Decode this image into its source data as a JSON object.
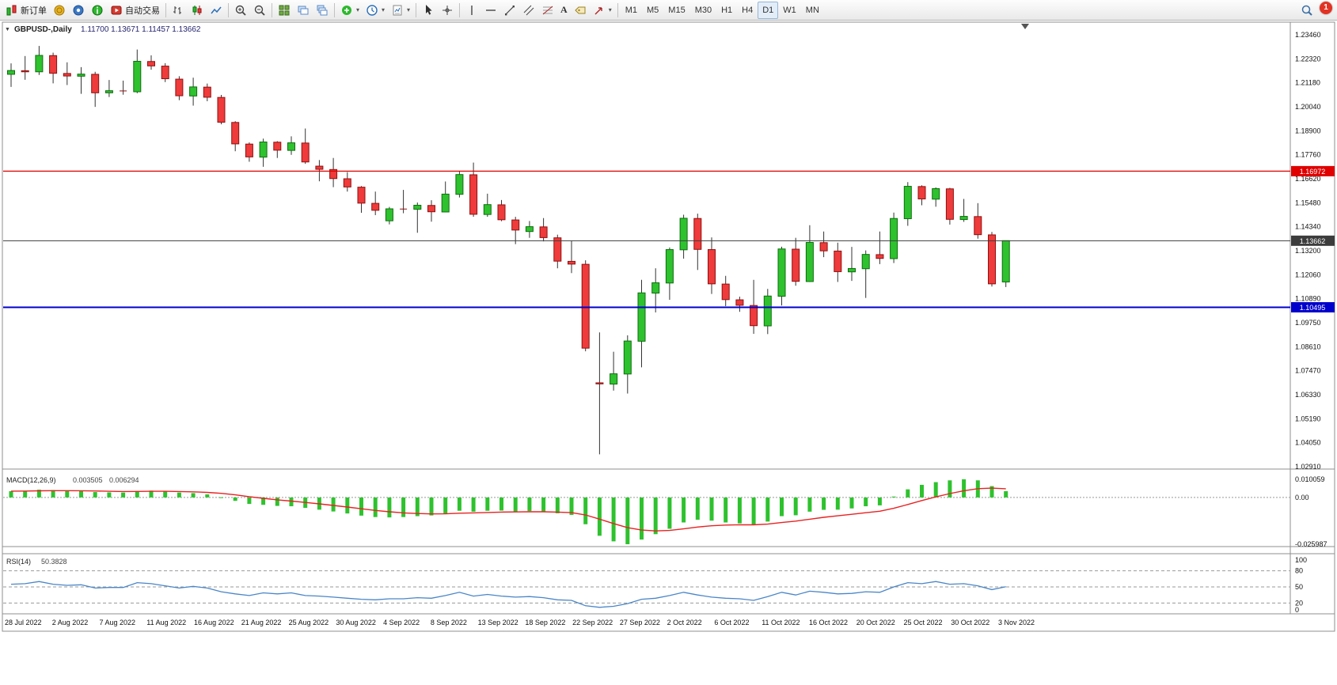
{
  "toolbar": {
    "new_order_label": "新订单",
    "autotrading_label": "自动交易",
    "timeframes": [
      "M1",
      "M5",
      "M15",
      "M30",
      "H1",
      "H4",
      "D1",
      "W1",
      "MN"
    ],
    "active_timeframe": "D1",
    "notification_count": "1",
    "caret_glyph": "▾",
    "icons": {
      "text_tool_glyph": "A",
      "names": [
        "new-order-icon",
        "market-watch-icon",
        "messages-icon",
        "info-icon",
        "autotrading-icon",
        "bar-chart-icon",
        "candlestick-chart-icon",
        "line-chart-icon",
        "zoom-in-icon",
        "zoom-out-icon",
        "tile-windows-icon",
        "arrange-windows-icon",
        "cascade-windows-icon",
        "indicators-icon",
        "periods-icon",
        "templates-icon",
        "cursor-icon",
        "crosshair-icon",
        "vertical-line-icon",
        "horizontal-line-icon",
        "trendline-icon",
        "channel-icon",
        "fibonacci-icon",
        "text-icon",
        "text-label-icon",
        "arrows-icon",
        "search-icon"
      ]
    }
  },
  "colors": {
    "candle_up": "#2ec22e",
    "candle_up_border": "#0e6e0e",
    "candle_down": "#ef3b3b",
    "candle_down_border": "#8f1010",
    "macd_histogram": "#2ec22e",
    "macd_signal": "#e82222",
    "rsi_line": "#4a86c8",
    "hline_resistance": "#e00000",
    "hline_current": "#3c3c3c",
    "hline_support": "#0000cc",
    "panel_border": "#8f8f8f"
  },
  "chart_data": [
    {
      "type": "candlestick",
      "title": "GBPUSD-,Daily",
      "timeframe": "D1",
      "quote": {
        "open": "1.11700",
        "high": "1.13671",
        "low": "1.11457",
        "close": "1.13662"
      },
      "collapse_marker": "▼",
      "ylim": [
        1.0291,
        1.2346
      ],
      "y_tick_labels": [
        "1.23460",
        "1.22320",
        "1.21180",
        "1.20040",
        "1.18900",
        "1.17760",
        "1.16620",
        "1.15480",
        "1.14340",
        "1.13200",
        "1.12060",
        "1.10890",
        "1.09750",
        "1.08610",
        "1.07470",
        "1.06330",
        "1.05190",
        "1.04050",
        "1.02910"
      ],
      "x_tick_labels": [
        "28 Jul 2022",
        "2 Aug 2022",
        "7 Aug 2022",
        "11 Aug 2022",
        "16 Aug 2022",
        "21 Aug 2022",
        "25 Aug 2022",
        "30 Aug 2022",
        "4 Sep 2022",
        "8 Sep 2022",
        "13 Sep 2022",
        "18 Sep 2022",
        "22 Sep 2022",
        "27 Sep 2022",
        "2 Oct 2022",
        "6 Oct 2022",
        "11 Oct 2022",
        "16 Oct 2022",
        "20 Oct 2022",
        "25 Oct 2022",
        "30 Oct 2022",
        "3 Nov 2022"
      ],
      "hlines": [
        {
          "price": 1.16972,
          "label": "1.16972",
          "color": "#e00000",
          "width": 1.2
        },
        {
          "price": 1.13662,
          "label": "1.13662",
          "color": "#3c3c3c",
          "width": 1
        },
        {
          "price": 1.10495,
          "label": "1.10495",
          "color": "#0000cc",
          "width": 2
        }
      ],
      "ohlc": [
        [
          1.2158,
          1.221,
          1.2098,
          1.2176
        ],
        [
          1.2175,
          1.2245,
          1.2132,
          1.217
        ],
        [
          1.217,
          1.2293,
          1.2155,
          1.2248
        ],
        [
          1.2247,
          1.2261,
          1.2115,
          1.2163
        ],
        [
          1.2162,
          1.2215,
          1.2107,
          1.215
        ],
        [
          1.2149,
          1.2192,
          1.2065,
          1.2159
        ],
        [
          1.2158,
          1.217,
          1.2003,
          1.207
        ],
        [
          1.207,
          1.2131,
          1.205,
          1.208
        ],
        [
          1.2079,
          1.2128,
          1.2061,
          1.2076
        ],
        [
          1.2075,
          1.2276,
          1.2068,
          1.222
        ],
        [
          1.2219,
          1.2248,
          1.218,
          1.2198
        ],
        [
          1.2197,
          1.2211,
          1.2121,
          1.2137
        ],
        [
          1.2135,
          1.2149,
          1.2035,
          1.2056
        ],
        [
          1.2055,
          1.2142,
          1.2009,
          1.2098
        ],
        [
          1.2097,
          1.2114,
          1.203,
          1.2049
        ],
        [
          1.2048,
          1.206,
          1.192,
          1.193
        ],
        [
          1.1929,
          1.1935,
          1.1792,
          1.1827
        ],
        [
          1.1826,
          1.1834,
          1.1742,
          1.1765
        ],
        [
          1.1764,
          1.1852,
          1.1718,
          1.1836
        ],
        [
          1.1835,
          1.184,
          1.176,
          1.1797
        ],
        [
          1.1796,
          1.1863,
          1.1775,
          1.1832
        ],
        [
          1.1831,
          1.19,
          1.1732,
          1.1741
        ],
        [
          1.1721,
          1.175,
          1.1649,
          1.1706
        ],
        [
          1.1705,
          1.176,
          1.1621,
          1.1662
        ],
        [
          1.1661,
          1.1693,
          1.16,
          1.1622
        ],
        [
          1.1621,
          1.1626,
          1.1499,
          1.1545
        ],
        [
          1.1544,
          1.16,
          1.1488,
          1.1511
        ],
        [
          1.1461,
          1.1527,
          1.1444,
          1.1518
        ],
        [
          1.1517,
          1.1608,
          1.1497,
          1.1516
        ],
        [
          1.1516,
          1.1548,
          1.1404,
          1.1535
        ],
        [
          1.1534,
          1.1559,
          1.1457,
          1.1504
        ],
        [
          1.1503,
          1.1648,
          1.1501,
          1.1588
        ],
        [
          1.1587,
          1.1699,
          1.1572,
          1.1681
        ],
        [
          1.168,
          1.1738,
          1.148,
          1.1492
        ],
        [
          1.1491,
          1.159,
          1.148,
          1.1538
        ],
        [
          1.1537,
          1.156,
          1.1459,
          1.1466
        ],
        [
          1.1465,
          1.148,
          1.135,
          1.1417
        ],
        [
          1.141,
          1.146,
          1.138,
          1.1433
        ],
        [
          1.1432,
          1.1474,
          1.1363,
          1.1381
        ],
        [
          1.138,
          1.1395,
          1.1235,
          1.1269
        ],
        [
          1.1268,
          1.1365,
          1.1212,
          1.1255
        ],
        [
          1.1254,
          1.1273,
          1.084,
          1.0855
        ],
        [
          1.069,
          1.093,
          1.035,
          1.0685
        ],
        [
          1.0684,
          1.0838,
          1.0653,
          1.0733
        ],
        [
          1.0732,
          1.0916,
          1.0639,
          1.0889
        ],
        [
          1.0888,
          1.118,
          1.0764,
          1.1118
        ],
        [
          1.1117,
          1.1235,
          1.1025,
          1.1166
        ],
        [
          1.1165,
          1.1334,
          1.1085,
          1.1324
        ],
        [
          1.1323,
          1.149,
          1.1281,
          1.1473
        ],
        [
          1.1472,
          1.1495,
          1.1227,
          1.1325
        ],
        [
          1.1324,
          1.1382,
          1.1113,
          1.1161
        ],
        [
          1.116,
          1.1199,
          1.1055,
          1.1086
        ],
        [
          1.1085,
          1.11,
          1.1028,
          1.1059
        ],
        [
          1.1058,
          1.118,
          1.0923,
          1.0962
        ],
        [
          1.0961,
          1.1137,
          1.0922,
          1.1103
        ],
        [
          1.1102,
          1.1338,
          1.1058,
          1.1327
        ],
        [
          1.1326,
          1.138,
          1.1152,
          1.1173
        ],
        [
          1.1172,
          1.144,
          1.117,
          1.1358
        ],
        [
          1.1357,
          1.141,
          1.1288,
          1.1318
        ],
        [
          1.1317,
          1.1357,
          1.117,
          1.1219
        ],
        [
          1.1218,
          1.1337,
          1.1175,
          1.1234
        ],
        [
          1.1233,
          1.132,
          1.1094,
          1.1301
        ],
        [
          1.13,
          1.141,
          1.1255,
          1.1282
        ],
        [
          1.1281,
          1.15,
          1.126,
          1.1472
        ],
        [
          1.1471,
          1.1645,
          1.1437,
          1.1625
        ],
        [
          1.1624,
          1.163,
          1.1535,
          1.1565
        ],
        [
          1.1564,
          1.162,
          1.1528,
          1.1614
        ],
        [
          1.1613,
          1.1618,
          1.1443,
          1.1468
        ],
        [
          1.1467,
          1.1565,
          1.1456,
          1.1482
        ],
        [
          1.1481,
          1.1545,
          1.1376,
          1.1395
        ],
        [
          1.1394,
          1.1408,
          1.1148,
          1.1161
        ],
        [
          1.117,
          1.13671,
          1.11457,
          1.13662
        ]
      ]
    },
    {
      "type": "bar",
      "name": "MACD(12,26,9)",
      "display_values": [
        "0.003505",
        "0.006294"
      ],
      "y_tick_labels": [
        "0.010059",
        "0.00",
        "-0.025987"
      ],
      "ylim": [
        -0.025987,
        0.010059
      ],
      "signal_period": 9,
      "histogram": [
        0.0035,
        0.0037,
        0.0043,
        0.0041,
        0.0038,
        0.0036,
        0.003,
        0.0028,
        0.0027,
        0.0036,
        0.0038,
        0.0034,
        0.0027,
        0.0024,
        0.0017,
        0.0001,
        -0.0019,
        -0.0036,
        -0.0041,
        -0.0047,
        -0.0049,
        -0.0058,
        -0.0068,
        -0.0078,
        -0.0089,
        -0.0101,
        -0.0109,
        -0.0111,
        -0.0109,
        -0.0104,
        -0.01,
        -0.0089,
        -0.0074,
        -0.0079,
        -0.0074,
        -0.0073,
        -0.0078,
        -0.0076,
        -0.0079,
        -0.0088,
        -0.0097,
        -0.0149,
        -0.0213,
        -0.0244,
        -0.026,
        -0.0234,
        -0.0204,
        -0.0174,
        -0.0139,
        -0.0124,
        -0.0129,
        -0.0139,
        -0.0144,
        -0.0153,
        -0.0134,
        -0.0104,
        -0.0099,
        -0.0079,
        -0.0069,
        -0.0068,
        -0.0061,
        -0.0049,
        -0.0044,
        0.0005,
        0.0045,
        0.007,
        0.0085,
        0.0095,
        0.0101,
        0.0095,
        0.0063,
        0.0035
      ]
    },
    {
      "type": "line",
      "name": "RSI(14)",
      "display_value": "50.3828",
      "ylim": [
        0,
        100
      ],
      "levels": [
        80,
        50,
        20
      ],
      "y_tick_labels": [
        "100",
        "80",
        "50",
        "20",
        "0"
      ],
      "values": [
        55,
        56,
        60,
        55,
        53,
        54,
        48,
        49,
        49,
        58,
        56,
        52,
        48,
        51,
        48,
        41,
        37,
        34,
        39,
        37,
        39,
        34,
        33,
        31,
        29,
        27,
        26,
        28,
        28,
        30,
        29,
        34,
        40,
        33,
        36,
        33,
        31,
        32,
        30,
        26,
        25,
        15,
        12,
        14,
        19,
        27,
        29,
        34,
        40,
        35,
        31,
        29,
        28,
        25,
        32,
        40,
        35,
        42,
        40,
        37,
        38,
        41,
        40,
        50,
        58,
        56,
        60,
        55,
        56,
        52,
        45,
        50.38
      ]
    }
  ]
}
